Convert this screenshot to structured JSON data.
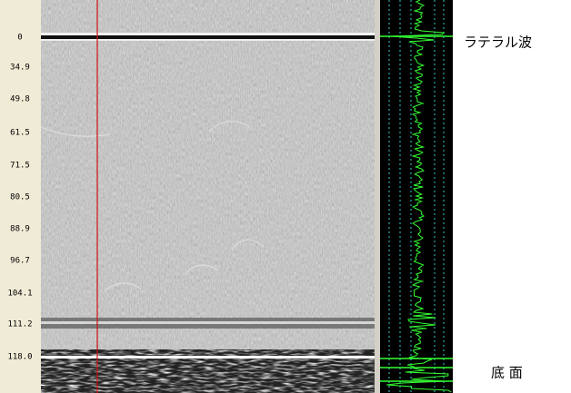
{
  "depth_labels": [
    "0",
    "34.9",
    "49.8",
    "61.5",
    "71.5",
    "80.5",
    "88.9",
    "96.7",
    "104.1",
    "111.2",
    "118.0"
  ],
  "annotations": {
    "lateral_wave": "ラテラル波",
    "bottom": "底 面"
  }
}
